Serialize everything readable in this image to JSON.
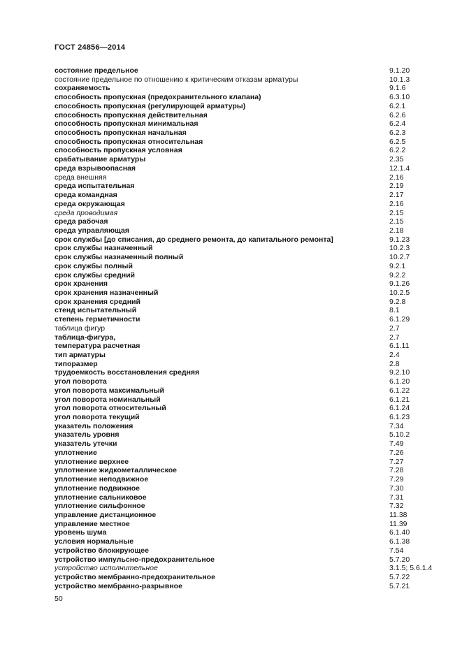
{
  "document": {
    "header": "ГОСТ 24856—2014",
    "page_number": "50"
  },
  "index_entries": [
    {
      "term": "состояние предельное",
      "ref": "9.1.20",
      "style": "bold"
    },
    {
      "term": "состояние предельное по отношению к критическим отказам арматуры",
      "ref": "10.1.3",
      "style": "regular"
    },
    {
      "term": "сохраняемость",
      "ref": "9.1.6",
      "style": "bold"
    },
    {
      "term": "способность пропускная (предохранительного клапана)",
      "ref": "6.3.10",
      "style": "bold"
    },
    {
      "term": "способность пропускная (регулирующей арматуры)",
      "ref": "6.2.1",
      "style": "bold"
    },
    {
      "term": "способность пропускная действительная",
      "ref": "6.2.6",
      "style": "bold"
    },
    {
      "term": "способность пропускная минимальная",
      "ref": "6.2.4",
      "style": "bold"
    },
    {
      "term": "способность пропускная начальная",
      "ref": "6.2.3",
      "style": "bold"
    },
    {
      "term": "способность пропускная относительная",
      "ref": "6.2.5",
      "style": "bold"
    },
    {
      "term": "способность пропускная условная",
      "ref": "6.2.2",
      "style": "bold"
    },
    {
      "term": "срабатывание арматуры",
      "ref": "2.35",
      "style": "bold"
    },
    {
      "term": "среда взрывоопасная",
      "ref": "12.1.4",
      "style": "bold"
    },
    {
      "term": "среда внешняя",
      "ref": "2.16",
      "style": "regular"
    },
    {
      "term": "среда испытательная",
      "ref": "2.19",
      "style": "bold"
    },
    {
      "term": "среда командная",
      "ref": "2.17",
      "style": "bold"
    },
    {
      "term": "среда окружающая",
      "ref": "2.16",
      "style": "bold"
    },
    {
      "term": "среда проводимая",
      "ref": "2.15",
      "style": "italic"
    },
    {
      "term": "среда рабочая",
      "ref": "2.15",
      "style": "bold"
    },
    {
      "term": "среда управляющая",
      "ref": "2.18",
      "style": "bold"
    },
    {
      "term": "срок службы [до списания, до среднего ремонта, до капитального ремонта]",
      "ref": "9.1.23",
      "style": "bold"
    },
    {
      "term": "срок службы назначенный",
      "ref": "10.2.3",
      "style": "bold"
    },
    {
      "term": "срок службы назначенный полный",
      "ref": "10.2.7",
      "style": "bold"
    },
    {
      "term": "срок службы полный",
      "ref": "9.2.1",
      "style": "bold"
    },
    {
      "term": "срок службы средний",
      "ref": "9.2.2",
      "style": "bold"
    },
    {
      "term": "срок хранения",
      "ref": "9.1.26",
      "style": "bold"
    },
    {
      "term": "срок хранения назначенный",
      "ref": "10.2.5",
      "style": "bold"
    },
    {
      "term": "срок хранения средний",
      "ref": "9.2.8",
      "style": "bold"
    },
    {
      "term": "стенд испытательный",
      "ref": "8.1",
      "style": "bold"
    },
    {
      "term": "степень герметичности",
      "ref": "6.1.29",
      "style": "bold"
    },
    {
      "term": "таблица фигур",
      "ref": "2.7",
      "style": "regular"
    },
    {
      "term": "таблица-фигура,",
      "ref": "2.7",
      "style": "bold"
    },
    {
      "term": "температура расчетная",
      "ref": "6.1.11",
      "style": "bold"
    },
    {
      "term": "тип арматуры",
      "ref": "2.4",
      "style": "bold"
    },
    {
      "term": "типоразмер",
      "ref": "2.8",
      "style": "bold"
    },
    {
      "term": "трудоемкость восстановления средняя",
      "ref": "9.2.10",
      "style": "bold"
    },
    {
      "term": "угол поворота",
      "ref": "6.1.20",
      "style": "bold"
    },
    {
      "term": "угол поворота максимальный",
      "ref": "6.1.22",
      "style": "bold"
    },
    {
      "term": "угол поворота номинальный",
      "ref": "6.1.21",
      "style": "bold"
    },
    {
      "term": "угол поворота относительный",
      "ref": "6.1.24",
      "style": "bold"
    },
    {
      "term": "угол поворота текущий",
      "ref": "6.1.23",
      "style": "bold"
    },
    {
      "term": "указатель положения",
      "ref": "7.34",
      "style": "bold"
    },
    {
      "term": "указатель уровня",
      "ref": "5.10.2",
      "style": "bold"
    },
    {
      "term": "указатель утечки",
      "ref": "7.49",
      "style": "bold"
    },
    {
      "term": "уплотнение",
      "ref": "7.26",
      "style": "bold"
    },
    {
      "term": "уплотнение верхнее",
      "ref": "7.27",
      "style": "bold"
    },
    {
      "term": "уплотнение жидкометаллическое",
      "ref": "7.28",
      "style": "bold"
    },
    {
      "term": "уплотнение неподвижное",
      "ref": "7.29",
      "style": "bold"
    },
    {
      "term": "уплотнение подвижное",
      "ref": "7.30",
      "style": "bold"
    },
    {
      "term": "уплотнение сальниковое",
      "ref": "7.31",
      "style": "bold"
    },
    {
      "term": "уплотнение сильфонное",
      "ref": "7.32",
      "style": "bold"
    },
    {
      "term": "управление дистанционное",
      "ref": "11.38",
      "style": "bold"
    },
    {
      "term": "управление местное",
      "ref": "11.39",
      "style": "bold"
    },
    {
      "term": "уровень шума",
      "ref": "6.1.40",
      "style": "bold"
    },
    {
      "term": "условия нормальные",
      "ref": "6.1.38",
      "style": "bold"
    },
    {
      "term": "устройство блокирующее",
      "ref": "7.54",
      "style": "bold"
    },
    {
      "term": "устройство импульсно-предохранительное",
      "ref": "5.7.20",
      "style": "bold"
    },
    {
      "term": "устройство исполнительное",
      "ref": "3.1.5; 5.6.1.4",
      "style": "italic"
    },
    {
      "term": "устройство мембранно-предохранительное",
      "ref": "5.7.22",
      "style": "bold"
    },
    {
      "term": "устройство мембранно-разрывное",
      "ref": "5.7.21",
      "style": "bold"
    }
  ]
}
